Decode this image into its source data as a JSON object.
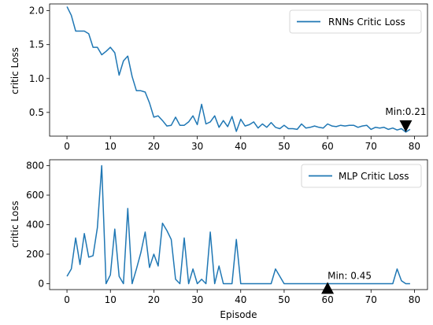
{
  "chart_data": [
    {
      "type": "line",
      "ylabel": "critic Loss",
      "xlabel": "",
      "xlim": [
        -4,
        83
      ],
      "ylim": [
        0.15,
        2.1
      ],
      "xticks": [
        0,
        10,
        20,
        30,
        40,
        50,
        60,
        70,
        80
      ],
      "yticks": [
        0.5,
        1.0,
        1.5,
        2.0
      ],
      "ytick_labels": [
        "0.5",
        "1.0",
        "1.5",
        "2.0"
      ],
      "legend": {
        "position": "top-right"
      },
      "series": [
        {
          "name": "RNNs Critic Loss",
          "color": "#1f77b4",
          "x": [
            0,
            1,
            2,
            3,
            4,
            5,
            6,
            7,
            8,
            9,
            10,
            11,
            12,
            13,
            14,
            15,
            16,
            17,
            18,
            19,
            20,
            21,
            22,
            23,
            24,
            25,
            26,
            27,
            28,
            29,
            30,
            31,
            32,
            33,
            34,
            35,
            36,
            37,
            38,
            39,
            40,
            41,
            42,
            43,
            44,
            45,
            46,
            47,
            48,
            49,
            50,
            51,
            52,
            53,
            54,
            55,
            56,
            57,
            58,
            59,
            60,
            61,
            62,
            63,
            64,
            65,
            66,
            67,
            68,
            69,
            70,
            71,
            72,
            73,
            74,
            75,
            76,
            77,
            78,
            79
          ],
          "values": [
            2.06,
            1.93,
            1.7,
            1.7,
            1.7,
            1.66,
            1.46,
            1.46,
            1.35,
            1.4,
            1.46,
            1.38,
            1.05,
            1.26,
            1.33,
            1.03,
            0.82,
            0.82,
            0.8,
            0.64,
            0.43,
            0.45,
            0.38,
            0.3,
            0.31,
            0.43,
            0.31,
            0.31,
            0.36,
            0.45,
            0.32,
            0.62,
            0.33,
            0.36,
            0.45,
            0.28,
            0.38,
            0.29,
            0.44,
            0.22,
            0.4,
            0.3,
            0.32,
            0.36,
            0.27,
            0.33,
            0.28,
            0.35,
            0.28,
            0.26,
            0.31,
            0.26,
            0.26,
            0.25,
            0.33,
            0.27,
            0.28,
            0.3,
            0.28,
            0.27,
            0.33,
            0.3,
            0.29,
            0.31,
            0.3,
            0.31,
            0.31,
            0.28,
            0.3,
            0.31,
            0.25,
            0.28,
            0.27,
            0.28,
            0.25,
            0.27,
            0.24,
            0.26,
            0.21,
            0.25
          ]
        }
      ],
      "annotations": [
        {
          "text": "Min:0.21",
          "x": 78,
          "y": 0.21,
          "marker": "down-triangle"
        }
      ]
    },
    {
      "type": "line",
      "ylabel": "critic Loss",
      "xlabel": "Episode",
      "xlim": [
        -4,
        83
      ],
      "ylim": [
        -40,
        840
      ],
      "xticks": [
        0,
        10,
        20,
        30,
        40,
        50,
        60,
        70,
        80
      ],
      "yticks": [
        0,
        200,
        400,
        600,
        800
      ],
      "ytick_labels": [
        "0",
        "200",
        "400",
        "600",
        "800"
      ],
      "legend": {
        "position": "top-right"
      },
      "series": [
        {
          "name": "MLP Critic Loss",
          "color": "#1f77b4",
          "x": [
            0,
            1,
            2,
            3,
            4,
            5,
            6,
            7,
            8,
            9,
            10,
            11,
            12,
            13,
            14,
            15,
            16,
            17,
            18,
            19,
            20,
            21,
            22,
            23,
            24,
            25,
            26,
            27,
            28,
            29,
            30,
            31,
            32,
            33,
            34,
            35,
            36,
            37,
            38,
            39,
            40,
            41,
            42,
            43,
            44,
            45,
            46,
            47,
            48,
            49,
            50,
            51,
            52,
            53,
            54,
            55,
            56,
            57,
            58,
            59,
            60,
            61,
            62,
            63,
            64,
            65,
            66,
            67,
            68,
            69,
            70,
            71,
            72,
            73,
            74,
            75,
            76,
            77,
            78,
            79
          ],
          "values": [
            50,
            100,
            310,
            130,
            340,
            180,
            190,
            380,
            800,
            0,
            60,
            370,
            50,
            0,
            510,
            0,
            100,
            210,
            350,
            110,
            200,
            120,
            410,
            360,
            300,
            30,
            0,
            310,
            0,
            100,
            0,
            30,
            0,
            350,
            0,
            120,
            0,
            0,
            0,
            300,
            0,
            0,
            0,
            0,
            0,
            0,
            0,
            0,
            100,
            50,
            0,
            0,
            0,
            0,
            0,
            0,
            0,
            0,
            0,
            0,
            0,
            0,
            0,
            0,
            0,
            0,
            0,
            0,
            0,
            0,
            0,
            0,
            0,
            0,
            0,
            0,
            100,
            20,
            0,
            0
          ]
        }
      ],
      "annotations": [
        {
          "text": "Min: 0.45",
          "x": 60,
          "y": 0.45,
          "marker": "up-triangle"
        }
      ]
    }
  ]
}
